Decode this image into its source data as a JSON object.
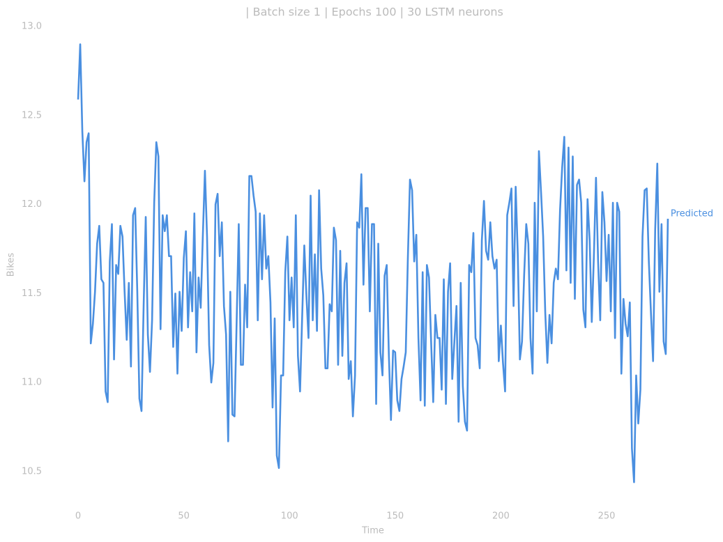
{
  "chart_data": {
    "type": "line",
    "title": "| Batch size 1 | Epochs 100 |  30 LSTM neurons",
    "x_label": "Time",
    "y_label": "Bikes",
    "xlim": [
      -10,
      300
    ],
    "ylim": [
      10.3,
      13.0
    ],
    "xticks": [
      0,
      50,
      100,
      150,
      200,
      250
    ],
    "yticks": [
      10.5,
      {
        "value": 11.0,
        "label": "11.0"
      },
      11.5,
      {
        "value": 12.0,
        "label": "12.0"
      },
      12.5,
      {
        "value": 13.0,
        "label": "13.0"
      }
    ],
    "grid": false,
    "x": [
      0,
      1,
      2,
      3,
      4,
      5,
      6,
      7,
      8,
      9,
      10,
      11,
      12,
      13,
      14,
      15,
      16,
      17,
      18,
      19,
      20,
      21,
      22,
      23,
      24,
      25,
      26,
      27,
      28,
      29,
      30,
      31,
      32,
      33,
      34,
      35,
      36,
      37,
      38,
      39,
      40,
      41,
      42,
      43,
      44,
      45,
      46,
      47,
      48,
      49,
      50,
      51,
      52,
      53,
      54,
      55,
      56,
      57,
      58,
      59,
      60,
      61,
      62,
      63,
      64,
      65,
      66,
      67,
      68,
      69,
      70,
      71,
      72,
      73,
      74,
      75,
      76,
      77,
      78,
      79,
      80,
      81,
      82,
      83,
      84,
      85,
      86,
      87,
      88,
      89,
      90,
      91,
      92,
      93,
      94,
      95,
      96,
      97,
      98,
      99,
      100,
      101,
      102,
      103,
      104,
      105,
      106,
      107,
      108,
      109,
      110,
      111,
      112,
      113,
      114,
      115,
      116,
      117,
      118,
      119,
      120,
      121,
      122,
      123,
      124,
      125,
      126,
      127,
      128,
      129,
      130,
      131,
      132,
      133,
      134,
      135,
      136,
      137,
      138,
      139,
      140,
      141,
      142,
      143,
      144,
      145,
      146,
      147,
      148,
      149,
      150,
      151,
      152,
      153,
      154,
      155,
      156,
      157,
      158,
      159,
      160,
      161,
      162,
      163,
      164,
      165,
      166,
      167,
      168,
      169,
      170,
      171,
      172,
      173,
      174,
      175,
      176,
      177,
      178,
      179,
      180,
      181,
      182,
      183,
      184,
      185,
      186,
      187,
      188,
      189,
      190,
      191,
      192,
      193,
      194,
      195,
      196,
      197,
      198,
      199,
      200,
      201,
      202,
      203,
      204,
      205,
      206,
      207,
      208,
      209,
      210,
      211,
      212,
      213,
      214,
      215,
      216,
      217,
      218,
      219,
      220,
      221,
      222,
      223,
      224,
      225,
      226,
      227,
      228,
      229,
      230,
      231,
      232,
      233,
      234,
      235,
      236,
      237,
      238,
      239,
      240,
      241,
      242,
      243,
      244,
      245,
      246,
      247,
      248,
      249,
      250,
      251,
      252,
      253,
      254,
      255,
      256,
      257,
      258,
      259,
      260,
      261,
      262,
      263,
      264,
      265,
      266,
      267,
      268,
      269,
      270,
      271,
      272,
      273,
      274,
      275,
      276,
      277,
      278,
      279
    ],
    "series": [
      {
        "name": "Predicted",
        "color": "#4a8fe0",
        "values": [
          12.59,
          12.9,
          12.41,
          12.13,
          12.35,
          12.4,
          11.22,
          11.33,
          11.51,
          11.78,
          11.88,
          11.58,
          11.56,
          10.95,
          10.89,
          11.68,
          11.89,
          11.13,
          11.66,
          11.61,
          11.88,
          11.82,
          11.51,
          11.24,
          11.56,
          11.09,
          11.94,
          11.98,
          11.51,
          10.91,
          10.84,
          11.43,
          11.93,
          11.27,
          11.06,
          11.35,
          12.01,
          12.35,
          12.27,
          11.3,
          11.94,
          11.85,
          11.94,
          11.71,
          11.71,
          11.2,
          11.5,
          11.05,
          11.51,
          11.29,
          11.7,
          11.85,
          11.31,
          11.62,
          11.4,
          11.95,
          11.17,
          11.59,
          11.42,
          11.82,
          12.19,
          11.82,
          11.21,
          11.0,
          11.11,
          12.0,
          12.06,
          11.71,
          11.9,
          11.43,
          11.27,
          10.67,
          11.51,
          10.82,
          10.81,
          11.34,
          11.89,
          11.1,
          11.1,
          11.55,
          11.31,
          12.16,
          12.16,
          12.05,
          11.96,
          11.35,
          11.95,
          11.58,
          11.94,
          11.64,
          11.71,
          11.45,
          10.86,
          11.36,
          10.59,
          10.52,
          11.04,
          11.04,
          11.62,
          11.82,
          11.35,
          11.59,
          11.31,
          11.94,
          11.15,
          10.95,
          11.37,
          11.77,
          11.49,
          11.25,
          12.05,
          11.35,
          11.72,
          11.29,
          12.08,
          11.64,
          11.49,
          11.08,
          11.08,
          11.44,
          11.4,
          11.87,
          11.8,
          11.1,
          11.74,
          11.15,
          11.56,
          11.67,
          11.02,
          11.12,
          10.81,
          11.04,
          11.9,
          11.87,
          12.17,
          11.55,
          11.98,
          11.98,
          11.4,
          11.89,
          11.89,
          10.88,
          11.78,
          11.17,
          11.04,
          11.6,
          11.66,
          11.16,
          10.79,
          11.18,
          11.17,
          10.9,
          10.84,
          11.02,
          11.09,
          11.17,
          11.7,
          12.14,
          12.08,
          11.68,
          11.83,
          11.25,
          10.9,
          11.62,
          10.87,
          11.66,
          11.59,
          11.23,
          10.89,
          11.38,
          11.25,
          11.25,
          10.96,
          11.58,
          10.88,
          11.51,
          11.67,
          11.02,
          11.23,
          11.43,
          10.78,
          11.56,
          10.98,
          10.78,
          10.73,
          11.66,
          11.62,
          11.84,
          11.25,
          11.21,
          11.08,
          11.8,
          12.02,
          11.74,
          11.69,
          11.9,
          11.71,
          11.64,
          11.69,
          11.12,
          11.32,
          11.11,
          10.95,
          11.94,
          12.01,
          12.09,
          11.43,
          12.1,
          11.72,
          11.13,
          11.23,
          11.6,
          11.89,
          11.78,
          11.25,
          11.05,
          12.01,
          11.4,
          12.3,
          12.07,
          11.82,
          11.39,
          11.11,
          11.38,
          11.22,
          11.56,
          11.64,
          11.58,
          11.97,
          12.21,
          12.38,
          11.63,
          12.32,
          11.56,
          12.27,
          11.47,
          12.11,
          12.14,
          12.01,
          11.41,
          11.31,
          12.03,
          11.8,
          11.34,
          11.71,
          12.15,
          11.68,
          11.35,
          12.07,
          11.9,
          11.57,
          11.83,
          11.4,
          12.01,
          11.25,
          12.01,
          11.96,
          11.05,
          11.47,
          11.33,
          11.26,
          11.45,
          10.63,
          10.44,
          11.04,
          10.77,
          10.96,
          11.82,
          12.08,
          12.09,
          11.68,
          11.39,
          11.12,
          11.86,
          12.23,
          11.51,
          11.89,
          11.23,
          11.16,
          11.92
        ]
      }
    ]
  }
}
